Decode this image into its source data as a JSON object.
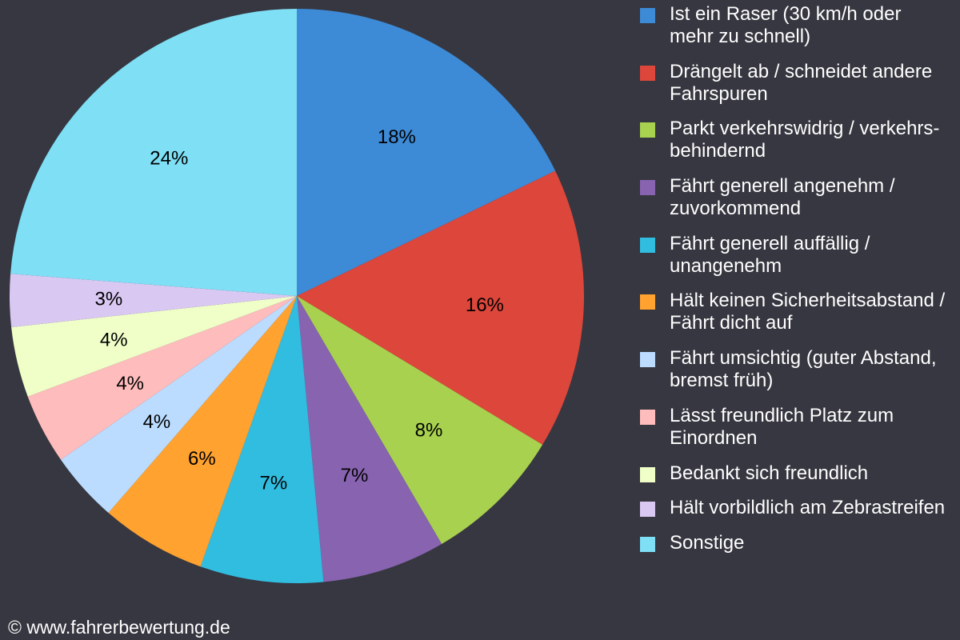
{
  "chart_data": {
    "type": "pie",
    "start": "top, clockwise",
    "legend_position": "right",
    "slices": [
      {
        "label": "Ist ein Raser (30 km/h oder mehr zu schnell)",
        "value": 18,
        "display": "18%",
        "color": "#3d8ad6"
      },
      {
        "label": "Drängelt ab / schneidet andere Fahrspuren",
        "value": 16,
        "display": "16%",
        "color": "#dc463b"
      },
      {
        "label": "Parkt verkehrswidrig / verkehrs-behindernd",
        "value": 8,
        "display": "8%",
        "color": "#a8d14f"
      },
      {
        "label": "Fährt generell angenehm / zuvorkommend",
        "value": 7,
        "display": "7%",
        "color": "#8763b0"
      },
      {
        "label": "Fährt generell auffällig / unangenehm",
        "value": 7,
        "display": "7%",
        "color": "#31bde0"
      },
      {
        "label": "Hält keinen Sicherheitsabstand / Fährt dicht auf",
        "value": 6,
        "display": "6%",
        "color": "#ffa22f"
      },
      {
        "label": "Fährt umsichtig (guter Abstand, bremst früh)",
        "value": 4,
        "display": "4%",
        "color": "#bbdcff"
      },
      {
        "label": "Lässt freundlich Platz zum Einordnen",
        "value": 4,
        "display": "4%",
        "color": "#ffbcbc"
      },
      {
        "label": "Bedankt sich freundlich",
        "value": 4,
        "display": "4%",
        "color": "#f0ffc8"
      },
      {
        "label": "Hält vorbildlich am Zebrastreifen",
        "value": 3,
        "display": "3%",
        "color": "#d9c8f2"
      },
      {
        "label": "Sonstige",
        "value": 24,
        "display": "24%",
        "color": "#7edff5"
      }
    ]
  },
  "credit": "© www.fahrerbewertung.de",
  "background": "#363740"
}
